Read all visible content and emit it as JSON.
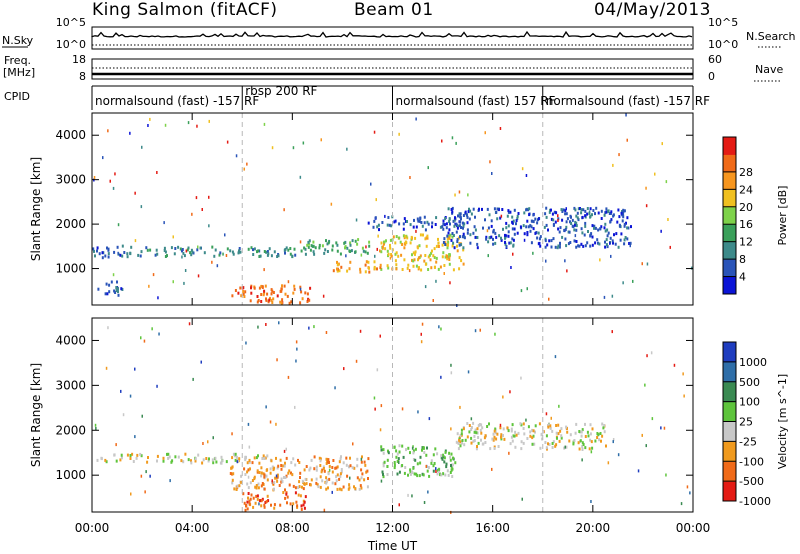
{
  "header": {
    "station": "King Salmon (fitACF)",
    "beam": "Beam 01",
    "date": "04/May/2013"
  },
  "summary_panels": {
    "nsky_label": "N.Sky",
    "freq_label_line1": "Freq.",
    "freq_label_line2": "[MHz]",
    "cpid_label": "CPID",
    "nsearch_label": "N.Search",
    "nave_label": "Nave",
    "left_ticks_top": [
      "10^5",
      "10^0"
    ],
    "left_ticks_freq": [
      "18",
      "8"
    ],
    "right_ticks_top": [
      "10^5",
      "10^0"
    ],
    "right_ticks_nave": [
      "60",
      "0"
    ]
  },
  "cpid_segments": [
    {
      "label": "normalsound (fast) -157 RF",
      "start_hour": 0,
      "end_hour": 6
    },
    {
      "label": "rbsp 200 RF",
      "start_hour": 6,
      "end_hour": 12
    },
    {
      "label": "normalsound (fast) 157 RF",
      "start_hour": 12,
      "end_hour": 18
    },
    {
      "label": "normalsound (fast) -157 RF",
      "start_hour": 18,
      "end_hour": 24
    }
  ],
  "chart_data": [
    {
      "type": "heatmap",
      "title": "Power",
      "xlabel": "Time UT",
      "ylabel": "Slant Range [km]",
      "xlim": [
        0,
        24
      ],
      "x_ticks": [
        "00:00",
        "04:00",
        "08:00",
        "12:00",
        "16:00",
        "20:00",
        "00:00"
      ],
      "ylim": [
        180,
        4500
      ],
      "y_ticks": [
        1000,
        2000,
        3000,
        4000
      ],
      "colorbar": {
        "label": "Power [dB]",
        "ticks": [
          "4",
          "8",
          "12",
          "16",
          "20",
          "24",
          "28"
        ],
        "colors": [
          "#0b14d6",
          "#2a54b8",
          "#3d8a8a",
          "#3aa05a",
          "#7ed24a",
          "#f0c020",
          "#f7961e",
          "#f06a18",
          "#e41b14"
        ]
      },
      "echo_regions": [
        {
          "t_start": 0,
          "t_end": 1.3,
          "r_min": 1250,
          "r_max": 1550,
          "level": 1
        },
        {
          "t_start": 1.3,
          "t_end": 8.5,
          "r_min": 1300,
          "r_max": 1520,
          "level": 2
        },
        {
          "t_start": 8.5,
          "t_end": 11.2,
          "r_min": 1350,
          "r_max": 1700,
          "level": 3
        },
        {
          "t_start": 11.0,
          "t_end": 14.8,
          "r_min": 1900,
          "r_max": 2200,
          "level": 1
        },
        {
          "t_start": 11.5,
          "t_end": 14.8,
          "r_min": 1000,
          "r_max": 1800,
          "level": 5
        },
        {
          "t_start": 9.5,
          "t_end": 11.5,
          "r_min": 950,
          "r_max": 1200,
          "level": 6
        },
        {
          "t_start": 14.0,
          "t_end": 21.5,
          "r_min": 1500,
          "r_max": 2400,
          "level": 1
        },
        {
          "t_start": 5.5,
          "t_end": 8.7,
          "r_min": 250,
          "r_max": 650,
          "level": 7
        },
        {
          "t_start": 0.2,
          "t_end": 1.2,
          "r_min": 400,
          "r_max": 750,
          "level": 1
        }
      ]
    },
    {
      "type": "heatmap",
      "xlabel": "Time UT",
      "ylabel": "Slant Range [km]",
      "xlim": [
        0,
        24
      ],
      "x_ticks": [
        "00:00",
        "04:00",
        "08:00",
        "12:00",
        "16:00",
        "20:00",
        "00:00"
      ],
      "ylim": [
        180,
        4500
      ],
      "y_ticks": [
        1000,
        2000,
        3000,
        4000
      ],
      "colorbar": {
        "label": "Velocity [m s^-1]",
        "ticks": [
          "1000",
          "500",
          "100",
          "25",
          "-25",
          "-100",
          "-500",
          "-1000"
        ],
        "colors": [
          "#1f3dbf",
          "#2f6ea8",
          "#3a8a52",
          "#5ec43c",
          "#c8c8c8",
          "#f09a1e",
          "#f06a18",
          "#e41b14"
        ]
      },
      "echo_regions": [
        {
          "t_start": 0,
          "t_end": 7,
          "r_min": 1300,
          "r_max": 1500,
          "level": 4
        },
        {
          "t_start": 5.5,
          "t_end": 11.0,
          "r_min": 700,
          "r_max": 1450,
          "level": 5
        },
        {
          "t_start": 11.5,
          "t_end": 14.5,
          "r_min": 1000,
          "r_max": 1700,
          "level": 3
        },
        {
          "t_start": 14.5,
          "t_end": 20.5,
          "r_min": 1600,
          "r_max": 2200,
          "level": 4
        },
        {
          "t_start": 6.0,
          "t_end": 8.5,
          "r_min": 250,
          "r_max": 650,
          "level": 6
        }
      ]
    }
  ]
}
